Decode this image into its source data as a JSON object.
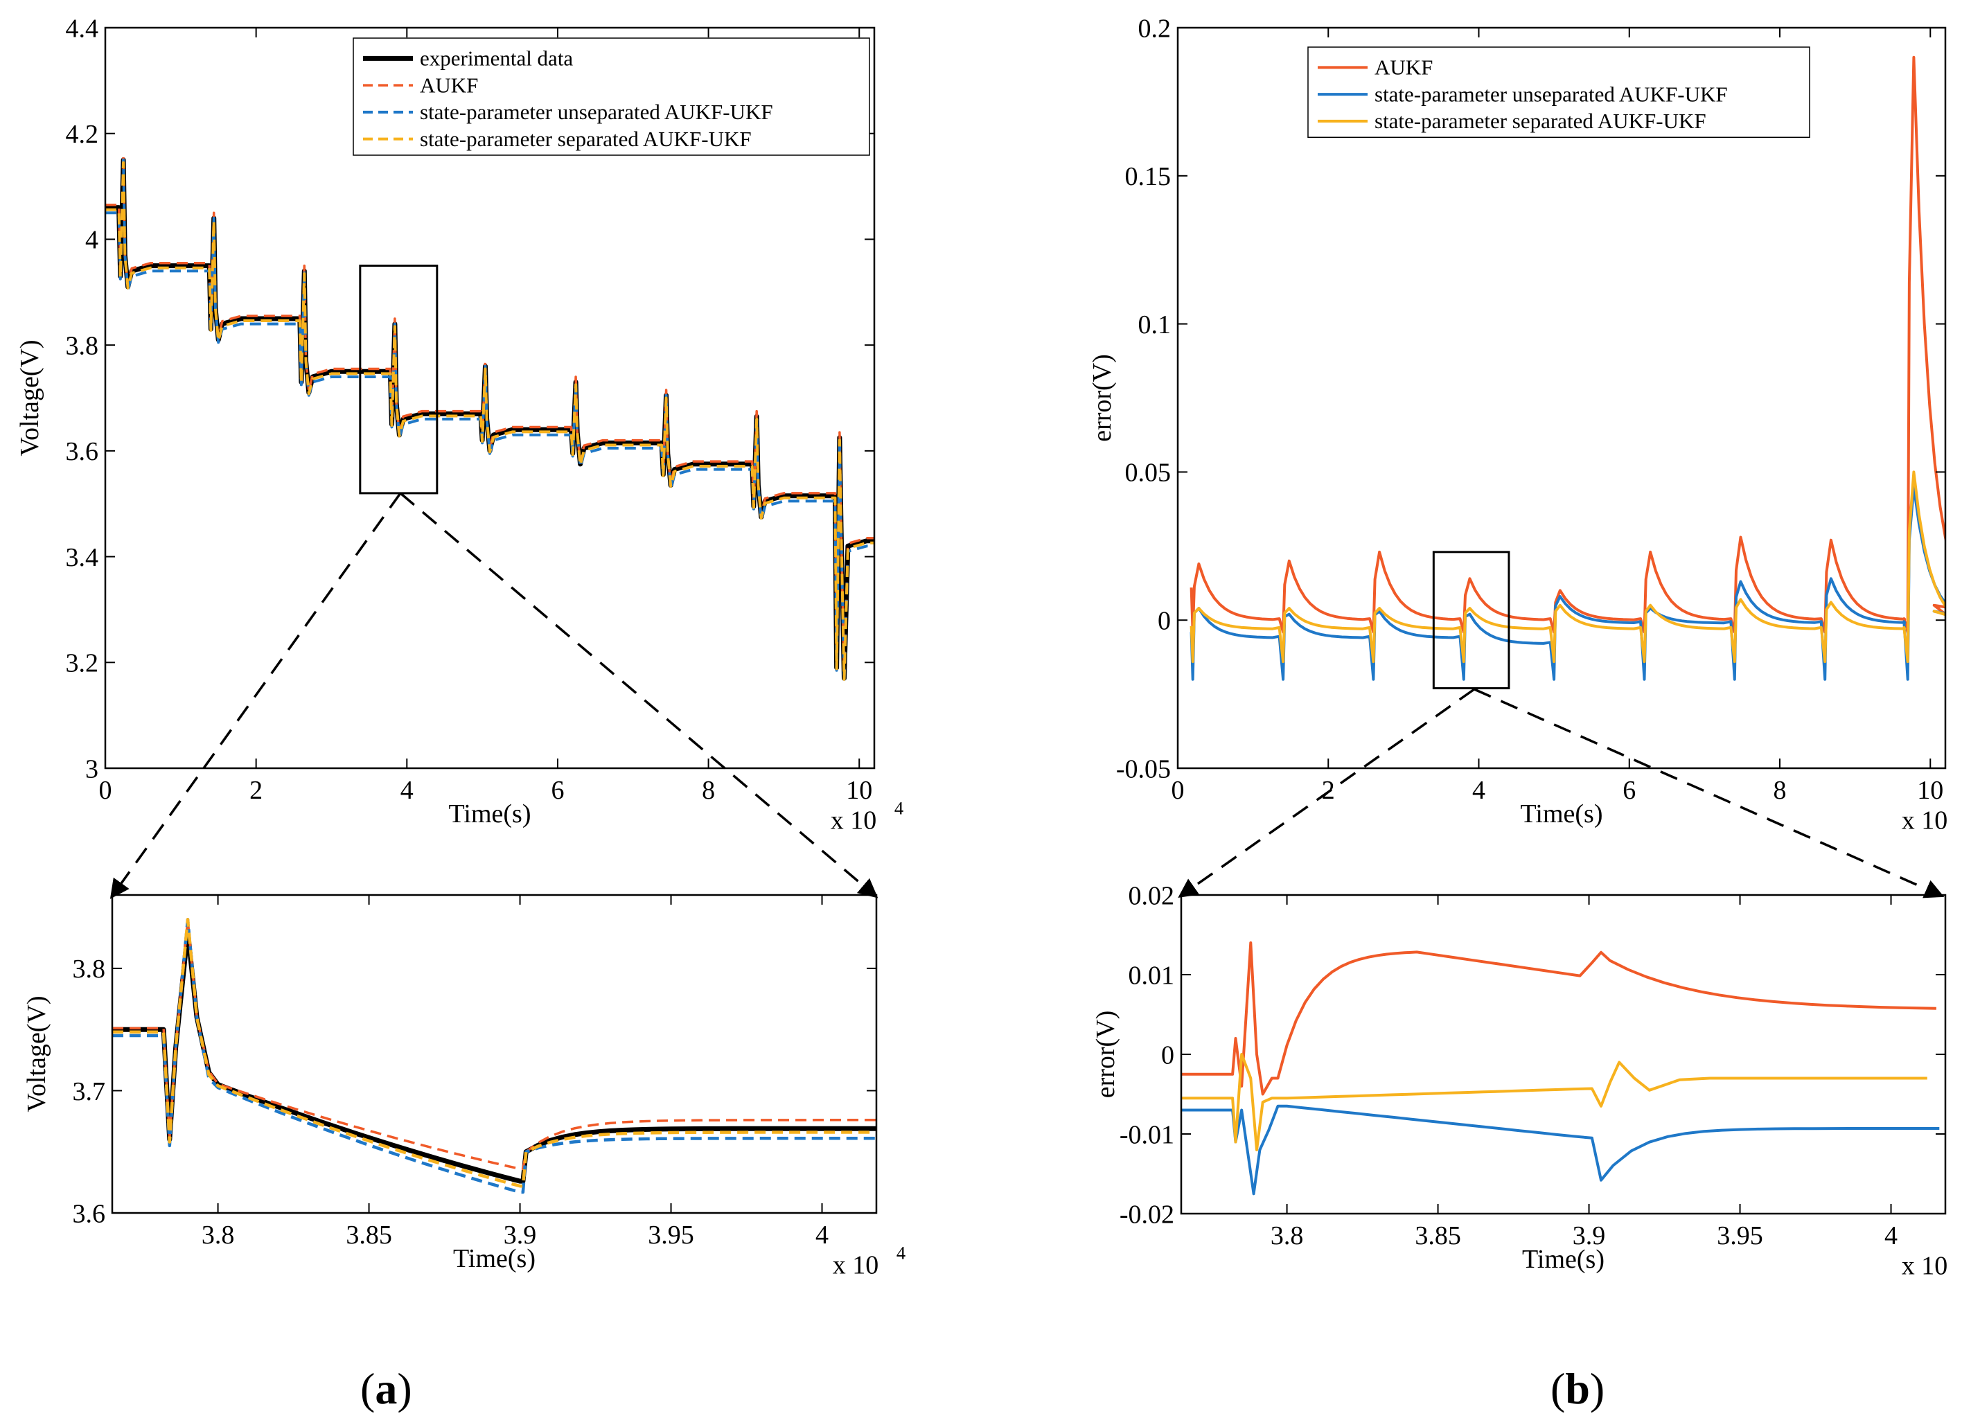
{
  "colors": {
    "experimental": "#000000",
    "aukf": "#F05A28",
    "unseparated": "#1F78C8",
    "separated": "#F7B21E"
  },
  "panel_labels": {
    "a": "a",
    "b": "b"
  },
  "chart_data": [
    {
      "id": "a_main",
      "type": "line",
      "xlabel": "Time(s)",
      "ylabel": "Voltage(V)",
      "x_multiplier": "x 10",
      "xlim": [
        0,
        10.2
      ],
      "ylim": [
        3.0,
        4.4
      ],
      "xticks": [
        0,
        2,
        4,
        6,
        8,
        10
      ],
      "xtick_labels": [
        "0",
        "2",
        "4",
        "6",
        "8",
        "10"
      ],
      "yticks": [
        3.0,
        3.2,
        3.4,
        3.6,
        3.8,
        4.0,
        4.2,
        4.4
      ],
      "ytick_labels": [
        "3",
        "3.2",
        "3.4",
        "3.6",
        "3.8",
        "4",
        "4.2",
        "4.4"
      ],
      "legend": [
        "experimental data",
        "AUKF",
        "state-parameter unseparated AUKF-UKF",
        "state-parameter separated AUKF-UKF"
      ],
      "zoom_box": {
        "x": [
          3.38,
          4.4
        ],
        "y": [
          3.52,
          3.95
        ]
      }
    },
    {
      "id": "a_zoom",
      "type": "line",
      "xlabel": "Time(s)",
      "ylabel": "Voltage(V)",
      "x_multiplier": "x 10",
      "xlim": [
        3.765,
        4.018
      ],
      "ylim": [
        3.6,
        3.86
      ],
      "xticks": [
        3.8,
        3.85,
        3.9,
        3.95,
        4.0
      ],
      "xtick_labels": [
        "3.8",
        "3.85",
        "3.9",
        "3.95",
        "4"
      ],
      "yticks": [
        3.6,
        3.7,
        3.8
      ],
      "ytick_labels": [
        "3.6",
        "3.7",
        "3.8"
      ]
    },
    {
      "id": "b_main",
      "type": "line",
      "xlabel": "Time(s)",
      "ylabel": "error(V)",
      "x_multiplier": "x 10",
      "xlim": [
        0,
        10.2
      ],
      "ylim": [
        -0.05,
        0.2
      ],
      "xticks": [
        0,
        2,
        4,
        6,
        8,
        10
      ],
      "xtick_labels": [
        "0",
        "2",
        "4",
        "6",
        "8",
        "10"
      ],
      "yticks": [
        -0.05,
        0,
        0.05,
        0.1,
        0.15,
        0.2
      ],
      "ytick_labels": [
        "-0.05",
        "0",
        "0.05",
        "0.1",
        "0.15",
        "0.2"
      ],
      "legend": [
        "AUKF",
        "state-parameter unseparated AUKF-UKF",
        "state-parameter separated AUKF-UKF"
      ],
      "zoom_box": {
        "x": [
          3.4,
          4.4
        ],
        "y": [
          -0.023,
          0.023
        ]
      }
    },
    {
      "id": "b_zoom",
      "type": "line",
      "xlabel": "Time(s)",
      "ylabel": "error(V)",
      "x_multiplier": "x 10",
      "xlim": [
        3.765,
        4.018
      ],
      "ylim": [
        -0.02,
        0.02
      ],
      "xticks": [
        3.8,
        3.85,
        3.9,
        3.95,
        4.0
      ],
      "xtick_labels": [
        "3.8",
        "3.85",
        "3.9",
        "3.95",
        "4"
      ],
      "yticks": [
        -0.02,
        -0.01,
        0,
        0.01,
        0.02
      ],
      "ytick_labels": [
        "-0.02",
        "-0.01",
        "0",
        "0.01",
        "0.02"
      ]
    }
  ],
  "multiplier_exponent": "4"
}
